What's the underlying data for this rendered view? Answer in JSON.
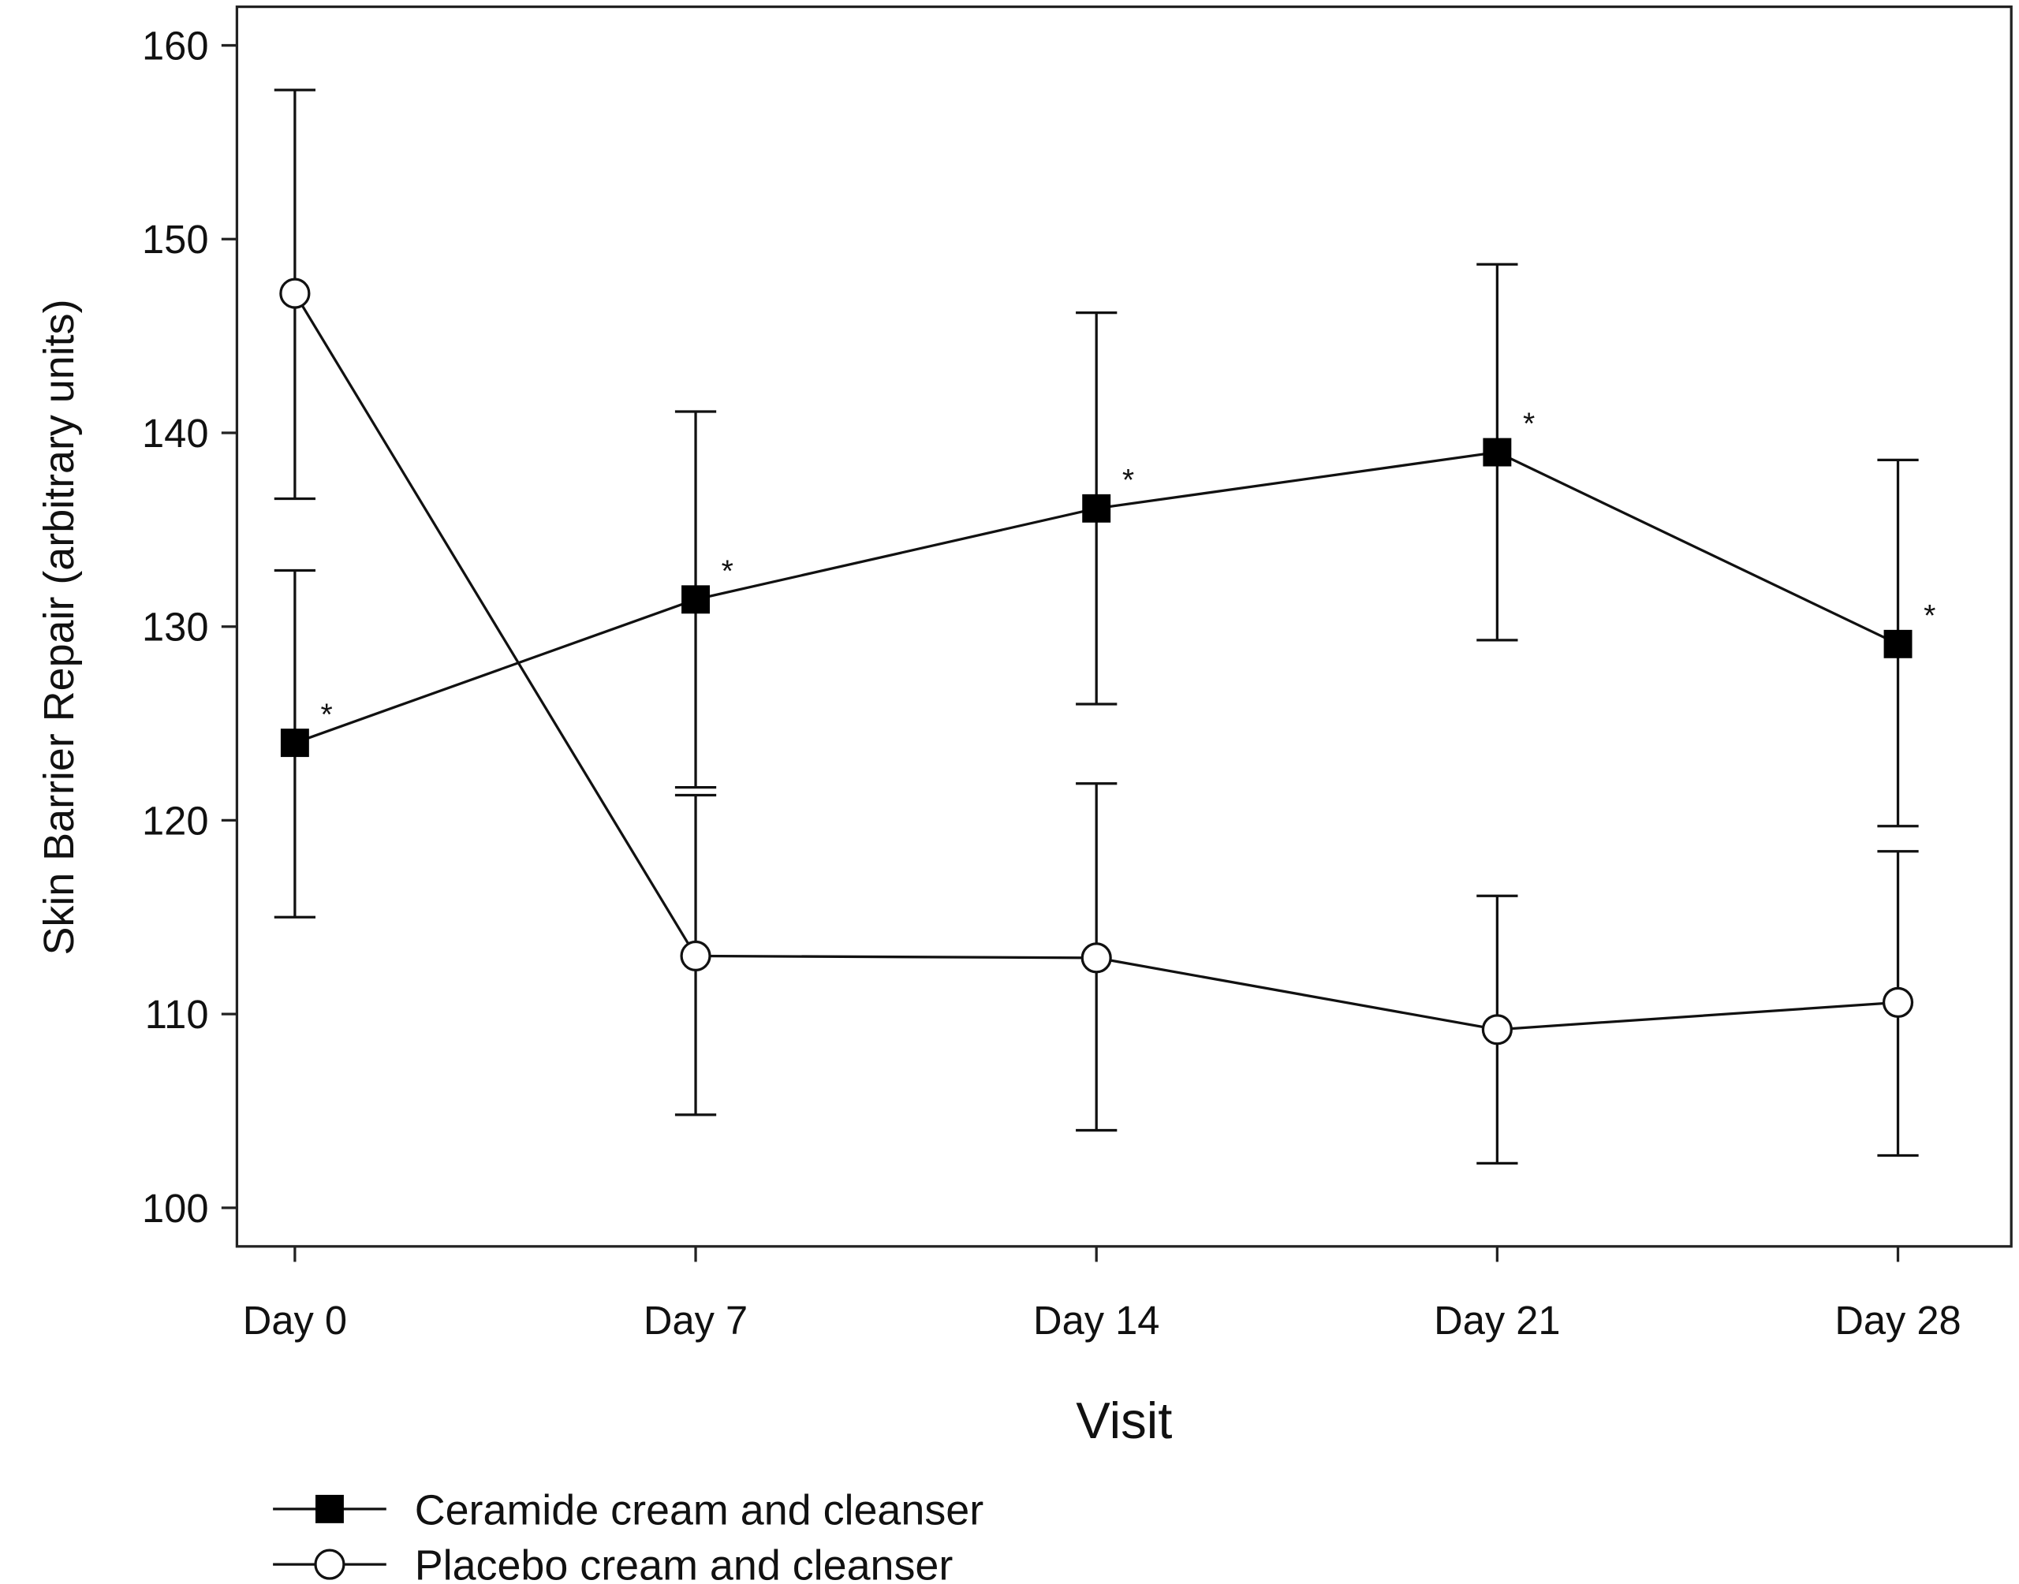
{
  "chart_data": {
    "type": "line",
    "title": "",
    "xlabel": "Visit",
    "ylabel": "Skin Barrier Repair (arbitrary units)",
    "categories": [
      "Day 0",
      "Day 7",
      "Day 14",
      "Day 21",
      "Day 28"
    ],
    "ylim": [
      100,
      160
    ],
    "yticks": [
      100,
      110,
      120,
      130,
      140,
      150,
      160
    ],
    "grid": false,
    "legend_position": "bottom-left",
    "series": [
      {
        "name": "Ceramide cream and cleanser",
        "marker": "filled-square",
        "values": [
          124.0,
          131.4,
          136.1,
          139.0,
          129.1
        ],
        "error_upper": [
          132.9,
          141.1,
          146.2,
          148.7,
          138.6
        ],
        "error_lower": [
          115.0,
          121.7,
          126.0,
          129.3,
          119.7
        ],
        "annotations": [
          "*",
          "*",
          "*",
          "*",
          "*"
        ]
      },
      {
        "name": "Placebo cream and cleanser",
        "marker": "open-circle",
        "values": [
          147.2,
          113.0,
          112.9,
          109.2,
          110.6
        ],
        "error_upper": [
          157.7,
          121.3,
          121.9,
          116.1,
          118.4
        ],
        "error_lower": [
          136.6,
          104.8,
          104.0,
          102.3,
          102.7
        ]
      }
    ]
  }
}
